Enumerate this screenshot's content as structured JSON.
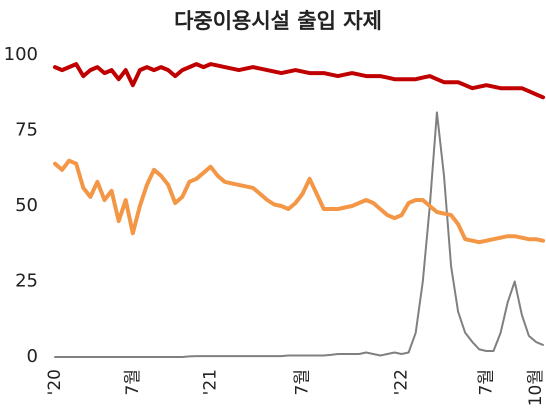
{
  "chart_data": {
    "type": "line",
    "title": "다중이용시설 출입 자제",
    "categories": [
      "'20",
      null,
      null,
      null,
      null,
      null,
      null,
      null,
      null,
      null,
      null,
      "7월",
      null,
      null,
      null,
      null,
      null,
      null,
      null,
      null,
      null,
      null,
      "'21",
      null,
      null,
      null,
      null,
      null,
      null,
      null,
      null,
      null,
      null,
      null,
      null,
      "7월",
      null,
      null,
      null,
      null,
      null,
      null,
      null,
      null,
      null,
      null,
      null,
      null,
      null,
      "'22",
      null,
      null,
      null,
      null,
      null,
      null,
      null,
      null,
      null,
      null,
      null,
      "7월",
      null,
      null,
      null,
      null,
      null,
      null,
      "10월",
      null
    ],
    "series": [
      {
        "color": "#c00000",
        "values": [
          96,
          95,
          96,
          97,
          93,
          95,
          96,
          94,
          95,
          92,
          95,
          90,
          95,
          96,
          95,
          96,
          95,
          93,
          95,
          96,
          97,
          96,
          97,
          96.5,
          96,
          95.5,
          95,
          95.5,
          96,
          95.5,
          95,
          94.5,
          94,
          94.5,
          95,
          94.5,
          94,
          94,
          94,
          93.5,
          93,
          93.5,
          94,
          93.5,
          93,
          93,
          93,
          92.5,
          92,
          92,
          92,
          92,
          92.5,
          93,
          92,
          91,
          91,
          91,
          90,
          89,
          89.5,
          90,
          89.5,
          89,
          89,
          89,
          89,
          88,
          87,
          86
        ]
      },
      {
        "color": "#f39646",
        "values": [
          64,
          62,
          65,
          64,
          56,
          53,
          58,
          52,
          55,
          45,
          52,
          41,
          50,
          57,
          62,
          60,
          57,
          51,
          53,
          58,
          59,
          61,
          63,
          60,
          58,
          57.5,
          57,
          56.5,
          56,
          54,
          52,
          50.5,
          50,
          49,
          51,
          54,
          59,
          54,
          49,
          49,
          49,
          49.5,
          50,
          51,
          52,
          51,
          49,
          47,
          46,
          47,
          51,
          52,
          52,
          50,
          48,
          47.5,
          47,
          44,
          39,
          38.5,
          38,
          38.5,
          39,
          39.5,
          40,
          40,
          39.5,
          39,
          39,
          38.5
        ]
      },
      {
        "color": "#808080",
        "values": [
          0,
          0,
          0,
          0,
          0,
          0,
          0,
          0,
          0,
          0,
          0,
          0,
          0,
          0,
          0,
          0,
          0,
          0,
          0,
          0.2,
          0.3,
          0.3,
          0.3,
          0.3,
          0.3,
          0.3,
          0.3,
          0.3,
          0.3,
          0.3,
          0.3,
          0.3,
          0.3,
          0.5,
          0.5,
          0.5,
          0.5,
          0.5,
          0.5,
          0.7,
          1,
          1,
          1,
          1,
          1.5,
          1,
          0.5,
          1,
          1.5,
          1,
          1.5,
          8,
          25,
          50,
          81,
          60,
          30,
          15,
          8,
          5,
          2.5,
          2,
          2,
          8,
          18,
          25,
          14,
          7,
          5,
          4
        ]
      }
    ],
    "ylim": [
      0,
      100
    ],
    "yticks": [
      0,
      25,
      50,
      75,
      100
    ],
    "grid": false
  }
}
